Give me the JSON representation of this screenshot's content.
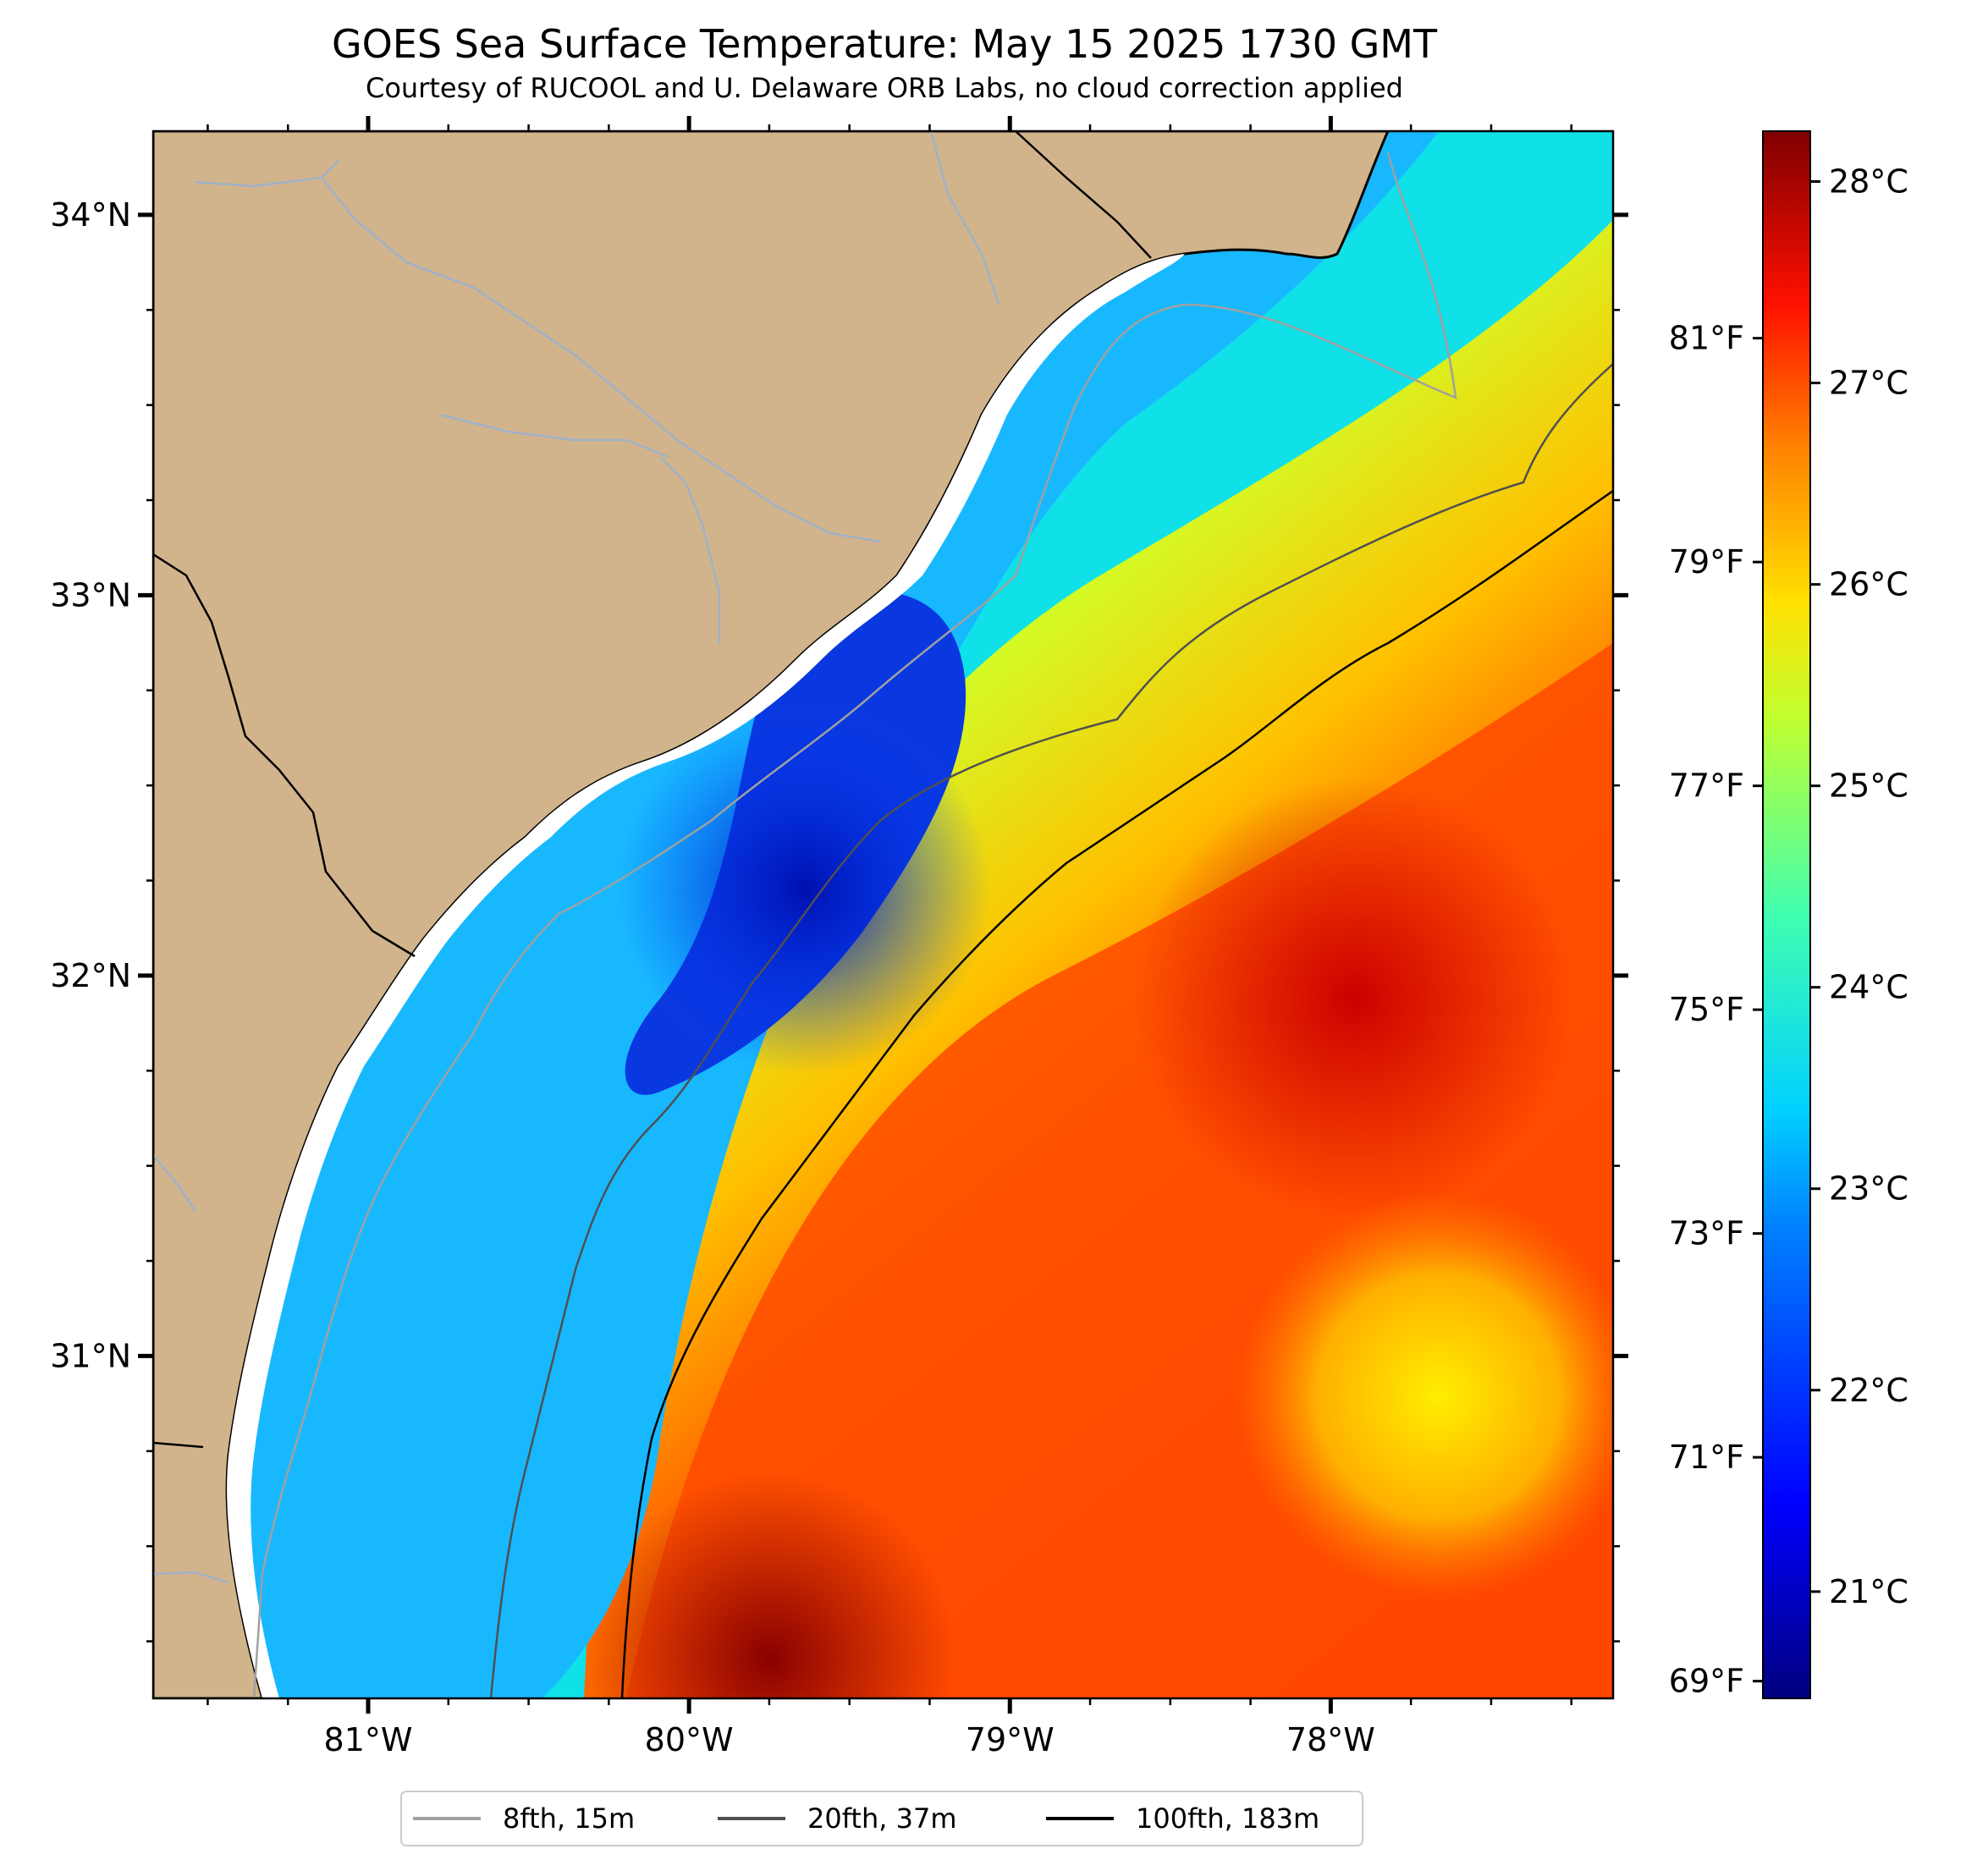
{
  "title": "GOES Sea Surface Temperature: May 15 2025 1730 GMT",
  "subtitle": "Courtesy of RUCOOL and U. Delaware ORB Labs, no cloud correction applied",
  "map": {
    "lon_range": [
      -81.67,
      -77.12
    ],
    "lat_range": [
      30.1,
      34.22
    ],
    "land_color": "#d2b48c",
    "colormap": "jet",
    "lon_ticks": [
      {
        "value": -81,
        "label": "81°W"
      },
      {
        "value": -80,
        "label": "80°W"
      },
      {
        "value": -79,
        "label": "79°W"
      },
      {
        "value": -78,
        "label": "78°W"
      }
    ],
    "lat_ticks": [
      {
        "value": 34,
        "label": "34°N"
      },
      {
        "value": 33,
        "label": "33°N"
      },
      {
        "value": 32,
        "label": "32°N"
      },
      {
        "value": 31,
        "label": "31°N"
      }
    ]
  },
  "colorbar": {
    "range_c": [
      20.47,
      28.25
    ],
    "colormap": "jet",
    "celsius_ticks": [
      {
        "value": 21,
        "label": "21°C"
      },
      {
        "value": 22,
        "label": "22°C"
      },
      {
        "value": 23,
        "label": "23°C"
      },
      {
        "value": 24,
        "label": "24°C"
      },
      {
        "value": 25,
        "label": "25°C"
      },
      {
        "value": 26,
        "label": "26°C"
      },
      {
        "value": 27,
        "label": "27°C"
      },
      {
        "value": 28,
        "label": "28°C"
      }
    ],
    "fahrenheit_ticks": [
      {
        "value": 69,
        "label": "69°F"
      },
      {
        "value": 71,
        "label": "71°F"
      },
      {
        "value": 73,
        "label": "73°F"
      },
      {
        "value": 75,
        "label": "75°F"
      },
      {
        "value": 77,
        "label": "77°F"
      },
      {
        "value": 79,
        "label": "79°F"
      },
      {
        "value": 81,
        "label": "81°F"
      }
    ]
  },
  "legend": {
    "placement": "bottom-center",
    "entries": [
      {
        "label": "8fth, 15m",
        "color": "#a0a0a0"
      },
      {
        "label": "20fth, 37m",
        "color": "#505050"
      },
      {
        "label": "100fth, 183m",
        "color": "#000000"
      }
    ]
  }
}
